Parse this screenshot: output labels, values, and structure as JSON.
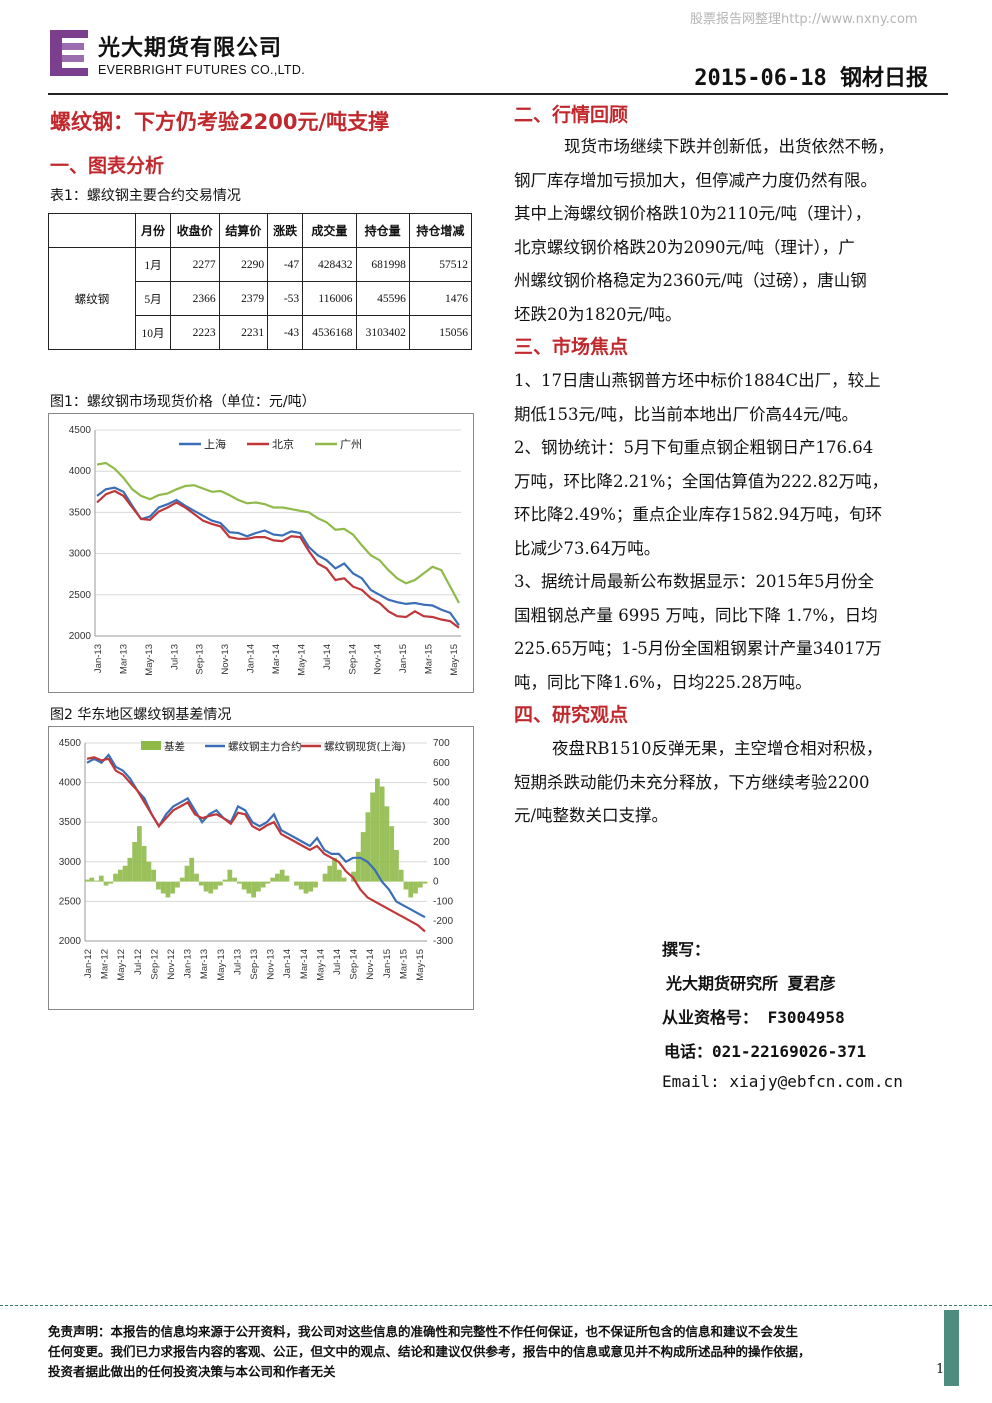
{
  "watermark": "股票报告网整理http://www.nxny.com",
  "header": {
    "logo_cn": "光大期货有限公司",
    "logo_en": "EVERBRIGHT FUTURES CO.,LTD.",
    "date_title": "2015-06-18 钢材日报"
  },
  "main_title": "螺纹钢：下方仍考验2200元/吨支撑",
  "section1": {
    "title": "一、图表分析",
    "table_caption": "表1：螺纹钢主要合约交易情况"
  },
  "table": {
    "headers": [
      "",
      "月份",
      "收盘价",
      "结算价",
      "涨跌",
      "成交量",
      "持仓量",
      "持仓增减"
    ],
    "product": "螺纹钢",
    "rows": [
      [
        "1月",
        "2277",
        "2290",
        "-47",
        "428432",
        "681998",
        "57512"
      ],
      [
        "5月",
        "2366",
        "2379",
        "-53",
        "116006",
        "45596",
        "1476"
      ],
      [
        "10月",
        "2223",
        "2231",
        "-43",
        "4536168",
        "3103402",
        "15056"
      ]
    ]
  },
  "fig1": {
    "caption": "图1：螺纹钢市场现货价格（单位：元/吨）"
  },
  "fig2": {
    "caption": "图2 华东地区螺纹钢基差情况"
  },
  "chart_data": [
    {
      "type": "line",
      "title": "",
      "ylim": [
        2000,
        4500
      ],
      "y_ticks": [
        "4500",
        "4000",
        "3500",
        "3000",
        "2500",
        "2000"
      ],
      "x_ticks": [
        "Jan-13",
        "Mar-13",
        "May-13",
        "Jul-13",
        "Sep-13",
        "Nov-13",
        "Jan-14",
        "Mar-14",
        "May-14",
        "Jul-14",
        "Sep-14",
        "Nov-14",
        "Jan-15",
        "Mar-15",
        "May-15"
      ],
      "series": [
        {
          "name": "上海",
          "color": "#3a6fb7",
          "values": [
            3700,
            3780,
            3800,
            3750,
            3580,
            3420,
            3450,
            3560,
            3600,
            3650,
            3580,
            3520,
            3460,
            3400,
            3370,
            3260,
            3250,
            3210,
            3250,
            3280,
            3230,
            3220,
            3270,
            3250,
            3080,
            2980,
            2920,
            2820,
            2880,
            2760,
            2700,
            2560,
            2500,
            2440,
            2410,
            2390,
            2400,
            2380,
            2370,
            2320,
            2280,
            2130
          ]
        },
        {
          "name": "北京",
          "color": "#c0373a",
          "values": [
            3620,
            3720,
            3760,
            3700,
            3560,
            3420,
            3410,
            3510,
            3560,
            3620,
            3560,
            3480,
            3400,
            3360,
            3330,
            3200,
            3180,
            3180,
            3200,
            3200,
            3160,
            3150,
            3210,
            3200,
            3030,
            2880,
            2820,
            2680,
            2700,
            2600,
            2560,
            2460,
            2400,
            2300,
            2240,
            2230,
            2300,
            2240,
            2230,
            2200,
            2180,
            2100
          ]
        },
        {
          "name": "广州",
          "color": "#8fba4a",
          "values": [
            4080,
            4100,
            4030,
            3920,
            3780,
            3700,
            3660,
            3710,
            3730,
            3780,
            3820,
            3830,
            3790,
            3750,
            3760,
            3710,
            3650,
            3610,
            3620,
            3600,
            3560,
            3560,
            3540,
            3520,
            3500,
            3430,
            3380,
            3290,
            3300,
            3230,
            3100,
            2980,
            2920,
            2800,
            2700,
            2640,
            2680,
            2760,
            2840,
            2800,
            2600,
            2400
          ]
        }
      ]
    },
    {
      "type": "line",
      "title": "",
      "ylim": [
        2000,
        4500
      ],
      "y2lim": [
        -300,
        700
      ],
      "y_ticks": [
        "4500",
        "4000",
        "3500",
        "3000",
        "2500",
        "2000"
      ],
      "y2_ticks": [
        "700",
        "600",
        "500",
        "400",
        "300",
        "200",
        "100",
        "0",
        "-100",
        "-200",
        "-300"
      ],
      "x_ticks": [
        "Jan-12",
        "Mar-12",
        "May-12",
        "Jul-12",
        "Sep-12",
        "Nov-12",
        "Jan-13",
        "Mar-13",
        "May-13",
        "Jul-13",
        "Sep-13",
        "Nov-13",
        "Jan-14",
        "Mar-14",
        "May-14",
        "Jul-14",
        "Sep-14",
        "Nov-14",
        "Jan-15",
        "Mar-15",
        "May-15"
      ],
      "series": [
        {
          "name": "基差",
          "color": "#8fba4a",
          "axis": "right",
          "kind": "bar",
          "values": [
            10,
            20,
            5,
            30,
            -20,
            -10,
            40,
            60,
            80,
            120,
            200,
            280,
            180,
            100,
            60,
            -40,
            -60,
            -80,
            -60,
            -30,
            20,
            80,
            120,
            40,
            -20,
            -50,
            -60,
            -40,
            -20,
            10,
            60,
            20,
            -10,
            -40,
            -60,
            -80,
            -50,
            -30,
            -10,
            20,
            40,
            60,
            30,
            0,
            -20,
            -40,
            -60,
            -50,
            -30,
            0,
            40,
            80,
            120,
            60,
            20,
            0,
            50,
            150,
            250,
            350,
            450,
            520,
            480,
            380,
            280,
            160,
            60,
            -40,
            -80,
            -60,
            -30,
            -10
          ]
        },
        {
          "name": "螺纹钢主力合约",
          "color": "#3a6fb7",
          "axis": "left",
          "values": [
            4250,
            4300,
            4250,
            4350,
            4200,
            4150,
            4050,
            3900,
            3800,
            3600,
            3450,
            3600,
            3700,
            3750,
            3800,
            3650,
            3500,
            3600,
            3650,
            3550,
            3500,
            3700,
            3650,
            3500,
            3450,
            3500,
            3600,
            3400,
            3350,
            3300,
            3250,
            3200,
            3300,
            3150,
            3100,
            3100,
            3000,
            3050,
            3050,
            3000,
            2900,
            2750,
            2650,
            2500,
            2450,
            2400,
            2350,
            2300
          ]
        },
        {
          "name": "螺纹钢现货(上海)",
          "color": "#c0373a",
          "axis": "left",
          "values": [
            4300,
            4320,
            4280,
            4300,
            4150,
            4100,
            4000,
            3900,
            3750,
            3600,
            3450,
            3550,
            3650,
            3700,
            3750,
            3600,
            3550,
            3580,
            3600,
            3550,
            3480,
            3620,
            3600,
            3450,
            3400,
            3460,
            3500,
            3350,
            3300,
            3250,
            3200,
            3150,
            3200,
            3100,
            3050,
            3000,
            2880,
            2800,
            2650,
            2550,
            2500,
            2450,
            2400,
            2350,
            2300,
            2250,
            2200,
            2120
          ]
        }
      ]
    }
  ],
  "section2": {
    "title": "二、行情回顾",
    "lines": [
      "现货市场继续下跌并创新低，出货依然不畅，",
      "钢厂库存增加亏损加大，但停减产力度仍然有限。",
      "其中上海螺纹钢价格跌10为2110元/吨（理计），",
      "北京螺纹钢价格跌20为2090元/吨（理计），广",
      "州螺纹钢价格稳定为2360元/吨（过磅），唐山钢",
      "坯跌20为1820元/吨。"
    ]
  },
  "section3": {
    "title": "三、市场焦点",
    "lines": [
      "1、17日唐山燕钢普方坯中标价1884C出厂，较上",
      "期低153元/吨，比当前本地出厂价高44元/吨。",
      "2、钢协统计：5月下旬重点钢企粗钢日产176.64",
      "万吨，环比降2.21%；全国估算值为222.82万吨，",
      "环比降2.49%；重点企业库存1582.94万吨，旬环",
      "比减少73.64万吨。",
      "3、据统计局最新公布数据显示：2015年5月份全",
      "国粗钢总产量 6995 万吨，同比下降 1.7%，日均",
      "225.65万吨；1-5月份全国粗钢累计产量34017万",
      "吨，同比下降1.6%，日均225.28万吨。"
    ]
  },
  "section4": {
    "title": "四、研究观点",
    "lines": [
      "夜盘RB1510反弹无果，主空增仓相对积极，",
      "短期杀跌动能仍未充分释放，下方继续考验2200",
      "元/吨整数关口支撑。"
    ]
  },
  "author": {
    "l1": "撰写：",
    "l2": "光大期货研究所 夏君彦",
    "l3": "从业资格号： F3004958",
    "l4": "电话：021-22169026-371",
    "l5": "Email: xiajy@ebfcn.com.cn"
  },
  "footer": {
    "l1": "免责声明：本报告的信息均来源于公开资料，我公司对这些信息的准确性和完整性不作任何保证，也不保证所包含的信息和建议不会发生",
    "l2": "任何变更。我们已力求报告内容的客观、公正，但文中的观点、结论和建议仅供参考，报告中的信息或意见并不构成所述品种的操作依据，",
    "l3": "投资者据此做出的任何投资决策与本公司和作者无关",
    "page": "1"
  }
}
